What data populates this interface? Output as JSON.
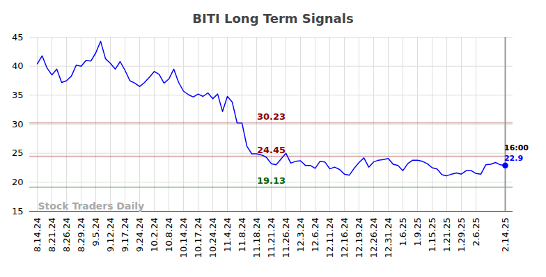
{
  "chart_data": {
    "type": "line",
    "title": "BITI Long Term Signals",
    "categories": [
      "8.14.24",
      null,
      null,
      "8.21.24",
      null,
      null,
      "8.26.24",
      null,
      null,
      "8.29.24",
      null,
      null,
      "9.5.24",
      null,
      null,
      "9.12.24",
      null,
      null,
      "9.17.24",
      null,
      null,
      "9.24.24",
      null,
      null,
      "10.2.24",
      null,
      null,
      "10.8.24",
      null,
      null,
      "10.14.24",
      null,
      null,
      "10.17.24",
      null,
      null,
      "10.24.24",
      null,
      null,
      "11.4.24",
      null,
      null,
      "11.8.24",
      null,
      null,
      "11.18.24",
      null,
      null,
      "11.21.24",
      null,
      null,
      "11.26.24",
      null,
      null,
      "12.3.24",
      null,
      null,
      "12.6.24",
      null,
      null,
      "12.11.24",
      null,
      null,
      "12.16.24",
      null,
      null,
      "12.19.24",
      null,
      null,
      "12.26.24",
      null,
      null,
      "12.31.24",
      null,
      null,
      "1.6.25",
      null,
      null,
      "1.9.25",
      null,
      null,
      "1.15.25",
      null,
      null,
      "1.21.25",
      null,
      null,
      "1.29.25",
      null,
      null,
      "2.6.25",
      null,
      null,
      null,
      null,
      null,
      "2.14.25"
    ],
    "values": [
      40.4,
      41.8,
      39.7,
      38.5,
      39.5,
      37.2,
      37.5,
      38.3,
      40.2,
      40.0,
      41.0,
      40.9,
      42.3,
      44.3,
      41.3,
      40.5,
      39.5,
      40.8,
      39.3,
      37.5,
      37.1,
      36.5,
      37.2,
      38.1,
      39.1,
      38.6,
      37.1,
      37.8,
      39.5,
      37.2,
      35.7,
      35.1,
      34.7,
      35.2,
      34.8,
      35.4,
      34.4,
      35.2,
      32.2,
      34.8,
      33.8,
      30.2,
      30.2,
      26.2,
      24.9,
      24.9,
      24.7,
      24.3,
      23.2,
      23.0,
      24.0,
      25.0,
      23.3,
      23.6,
      23.7,
      22.9,
      22.9,
      22.4,
      23.6,
      23.5,
      22.3,
      22.6,
      22.2,
      21.4,
      21.2,
      22.4,
      23.4,
      24.2,
      22.6,
      23.5,
      23.8,
      23.9,
      24.1,
      23.1,
      22.9,
      22.0,
      23.2,
      23.8,
      23.8,
      23.6,
      23.2,
      22.5,
      22.3,
      21.3,
      21.1,
      21.4,
      21.6,
      21.4,
      22.0,
      22.0,
      21.5,
      21.4,
      23.0,
      23.1,
      23.4,
      23.0,
      22.9
    ],
    "color": "#0000ff",
    "marker": "last",
    "levels": [
      {
        "value": 30.23,
        "color": "#8b0000"
      },
      {
        "value": 24.45,
        "color": "#8b0000"
      },
      {
        "value": 19.13,
        "color": "#006400"
      }
    ],
    "last_label": "16:00",
    "watermark": "Stock Traders Daily",
    "ylim": [
      15,
      45
    ],
    "yticks": [
      15,
      20,
      25,
      30,
      35,
      40,
      45
    ],
    "grid": true
  }
}
